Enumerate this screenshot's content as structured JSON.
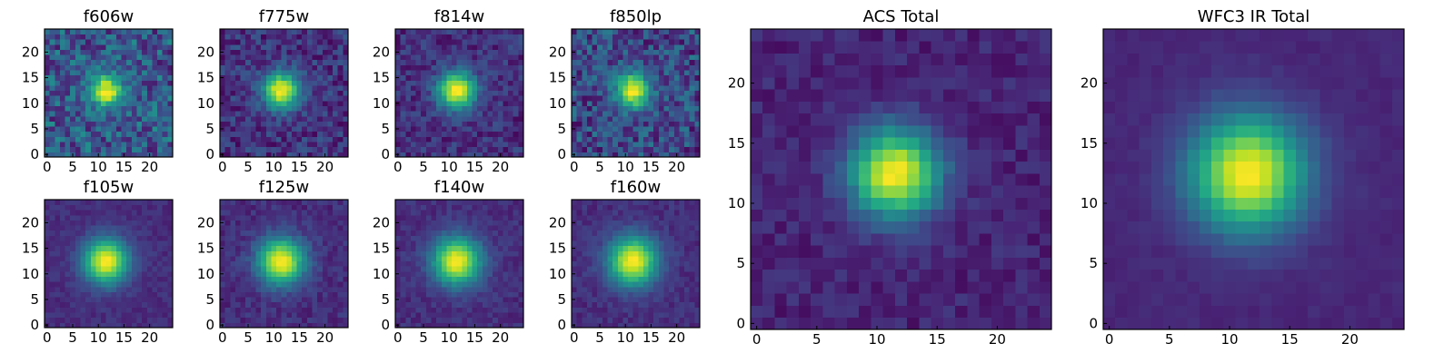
{
  "figure": {
    "background": "#ffffff",
    "colormap": "viridis"
  },
  "chart_data": [
    {
      "type": "heatmap",
      "title": "f606w",
      "grid_size": 25,
      "peak": [
        11.5,
        12.5
      ],
      "sigma": 2.2,
      "noise": 0.22,
      "background": 0.28,
      "seed": 11,
      "xlim": [
        0,
        24
      ],
      "ylim": [
        0,
        24
      ],
      "xticks": [
        "0",
        "5",
        "10",
        "15",
        "20"
      ],
      "yticks": [
        "0",
        "5",
        "10",
        "15",
        "20"
      ]
    },
    {
      "type": "heatmap",
      "title": "f775w",
      "grid_size": 25,
      "peak": [
        11.5,
        12.5
      ],
      "sigma": 2.5,
      "noise": 0.14,
      "background": 0.15,
      "seed": 23,
      "xlim": [
        0,
        24
      ],
      "ylim": [
        0,
        24
      ],
      "xticks": [
        "0",
        "5",
        "10",
        "15",
        "20"
      ],
      "yticks": [
        "0",
        "5",
        "10",
        "15",
        "20"
      ]
    },
    {
      "type": "heatmap",
      "title": "f814w",
      "grid_size": 25,
      "peak": [
        11.5,
        12.5
      ],
      "sigma": 2.6,
      "noise": 0.12,
      "background": 0.14,
      "seed": 37,
      "xlim": [
        0,
        24
      ],
      "ylim": [
        0,
        24
      ],
      "xticks": [
        "0",
        "5",
        "10",
        "15",
        "20"
      ],
      "yticks": [
        "0",
        "5",
        "10",
        "15",
        "20"
      ]
    },
    {
      "type": "heatmap",
      "title": "f850lp",
      "grid_size": 25,
      "peak": [
        11.5,
        12.5
      ],
      "sigma": 2.3,
      "noise": 0.2,
      "background": 0.22,
      "seed": 41,
      "xlim": [
        0,
        24
      ],
      "ylim": [
        0,
        24
      ],
      "xticks": [
        "0",
        "5",
        "10",
        "15",
        "20"
      ],
      "yticks": [
        "0",
        "5",
        "10",
        "15",
        "20"
      ]
    },
    {
      "type": "heatmap",
      "title": "f105w",
      "grid_size": 25,
      "peak": [
        11.5,
        12.5
      ],
      "sigma": 3.1,
      "noise": 0.05,
      "background": 0.13,
      "seed": 53,
      "xlim": [
        0,
        24
      ],
      "ylim": [
        0,
        24
      ],
      "xticks": [
        "0",
        "5",
        "10",
        "15",
        "20"
      ],
      "yticks": [
        "0",
        "5",
        "10",
        "15",
        "20"
      ]
    },
    {
      "type": "heatmap",
      "title": "f125w",
      "grid_size": 25,
      "peak": [
        11.5,
        12.5
      ],
      "sigma": 3.2,
      "noise": 0.07,
      "background": 0.13,
      "seed": 67,
      "xlim": [
        0,
        24
      ],
      "ylim": [
        0,
        24
      ],
      "xticks": [
        "0",
        "5",
        "10",
        "15",
        "20"
      ],
      "yticks": [
        "0",
        "5",
        "10",
        "15",
        "20"
      ]
    },
    {
      "type": "heatmap",
      "title": "f140w",
      "grid_size": 25,
      "peak": [
        11.5,
        12.5
      ],
      "sigma": 3.3,
      "noise": 0.06,
      "background": 0.13,
      "seed": 79,
      "xlim": [
        0,
        24
      ],
      "ylim": [
        0,
        24
      ],
      "xticks": [
        "0",
        "5",
        "10",
        "15",
        "20"
      ],
      "yticks": [
        "0",
        "5",
        "10",
        "15",
        "20"
      ]
    },
    {
      "type": "heatmap",
      "title": "f160w",
      "grid_size": 25,
      "peak": [
        11.5,
        12.5
      ],
      "sigma": 3.4,
      "noise": 0.06,
      "background": 0.13,
      "seed": 83,
      "xlim": [
        0,
        24
      ],
      "ylim": [
        0,
        24
      ],
      "xticks": [
        "0",
        "5",
        "10",
        "15",
        "20"
      ],
      "yticks": [
        "0",
        "5",
        "10",
        "15",
        "20"
      ]
    },
    {
      "type": "heatmap",
      "title": "ACS Total",
      "grid_size": 25,
      "peak": [
        11.5,
        12.5
      ],
      "sigma": 2.6,
      "noise": 0.07,
      "background": 0.1,
      "seed": 97,
      "xlim": [
        0,
        24
      ],
      "ylim": [
        0,
        24
      ],
      "xticks": [
        "0",
        "5",
        "10",
        "15",
        "20"
      ],
      "yticks": [
        "0",
        "5",
        "10",
        "15",
        "20"
      ]
    },
    {
      "type": "heatmap",
      "title": "WFC3 IR Total",
      "grid_size": 25,
      "peak": [
        11.5,
        12.5
      ],
      "sigma": 3.4,
      "noise": 0.025,
      "background": 0.11,
      "seed": 101,
      "xlim": [
        0,
        24
      ],
      "ylim": [
        0,
        24
      ],
      "xticks": [
        "0",
        "5",
        "10",
        "15",
        "20"
      ],
      "yticks": [
        "0",
        "5",
        "10",
        "15",
        "20"
      ]
    }
  ]
}
